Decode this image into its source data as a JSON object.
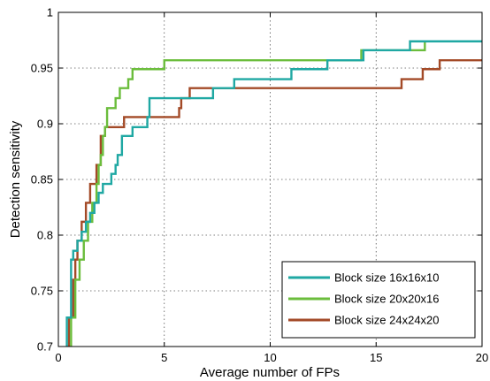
{
  "chart_data": {
    "type": "line",
    "title": "",
    "xlabel": "Average number of FPs",
    "ylabel": "Detection sensitivity",
    "xlim": [
      0,
      20
    ],
    "ylim": [
      0.7,
      1
    ],
    "xticks": [
      0,
      5,
      10,
      15,
      20
    ],
    "yticks": [
      0.7,
      0.75,
      0.8,
      0.85,
      0.9,
      0.95,
      1
    ],
    "xtick_labels": [
      "0",
      "5",
      "10",
      "15",
      "20"
    ],
    "ytick_labels": [
      "0.7",
      "0.75",
      "0.8",
      "0.85",
      "0.9",
      "0.95",
      "1"
    ],
    "grid": true,
    "legend_position": "bottom-right",
    "series": [
      {
        "name": "Block size 16x16x10",
        "color": "#1fa8a3",
        "steps": [
          [
            0.4,
            0.7
          ],
          [
            0.4,
            0.726
          ],
          [
            0.6,
            0.726
          ],
          [
            0.6,
            0.778
          ],
          [
            0.7,
            0.778
          ],
          [
            0.7,
            0.786
          ],
          [
            0.9,
            0.786
          ],
          [
            0.9,
            0.795
          ],
          [
            1.1,
            0.795
          ],
          [
            1.1,
            0.803
          ],
          [
            1.3,
            0.803
          ],
          [
            1.3,
            0.812
          ],
          [
            1.5,
            0.812
          ],
          [
            1.5,
            0.82
          ],
          [
            1.7,
            0.82
          ],
          [
            1.7,
            0.829
          ],
          [
            1.9,
            0.829
          ],
          [
            1.9,
            0.838
          ],
          [
            2.1,
            0.838
          ],
          [
            2.1,
            0.846
          ],
          [
            2.5,
            0.846
          ],
          [
            2.5,
            0.855
          ],
          [
            2.7,
            0.855
          ],
          [
            2.7,
            0.863
          ],
          [
            2.8,
            0.863
          ],
          [
            2.8,
            0.872
          ],
          [
            3.0,
            0.872
          ],
          [
            3.0,
            0.889
          ],
          [
            3.5,
            0.889
          ],
          [
            3.5,
            0.897
          ],
          [
            4.2,
            0.897
          ],
          [
            4.2,
            0.906
          ],
          [
            4.3,
            0.906
          ],
          [
            4.3,
            0.923
          ],
          [
            7.3,
            0.923
          ],
          [
            7.3,
            0.932
          ],
          [
            8.3,
            0.932
          ],
          [
            8.3,
            0.94
          ],
          [
            11.0,
            0.94
          ],
          [
            11.0,
            0.949
          ],
          [
            12.7,
            0.949
          ],
          [
            12.7,
            0.957
          ],
          [
            14.4,
            0.957
          ],
          [
            14.4,
            0.966
          ],
          [
            16.6,
            0.966
          ],
          [
            16.6,
            0.974
          ],
          [
            20,
            0.974
          ]
        ]
      },
      {
        "name": "Block size 20x20x16",
        "color": "#6bbd3c",
        "steps": [
          [
            0.6,
            0.7
          ],
          [
            0.6,
            0.726
          ],
          [
            0.8,
            0.726
          ],
          [
            0.8,
            0.76
          ],
          [
            1.0,
            0.76
          ],
          [
            1.0,
            0.778
          ],
          [
            1.2,
            0.778
          ],
          [
            1.2,
            0.795
          ],
          [
            1.4,
            0.795
          ],
          [
            1.4,
            0.812
          ],
          [
            1.6,
            0.812
          ],
          [
            1.6,
            0.829
          ],
          [
            1.8,
            0.829
          ],
          [
            1.8,
            0.846
          ],
          [
            1.9,
            0.846
          ],
          [
            1.9,
            0.863
          ],
          [
            2.0,
            0.863
          ],
          [
            2.0,
            0.872
          ],
          [
            2.1,
            0.872
          ],
          [
            2.1,
            0.889
          ],
          [
            2.2,
            0.889
          ],
          [
            2.2,
            0.897
          ],
          [
            2.3,
            0.897
          ],
          [
            2.3,
            0.914
          ],
          [
            2.7,
            0.914
          ],
          [
            2.7,
            0.923
          ],
          [
            2.9,
            0.923
          ],
          [
            2.9,
            0.932
          ],
          [
            3.3,
            0.932
          ],
          [
            3.3,
            0.94
          ],
          [
            3.5,
            0.94
          ],
          [
            3.5,
            0.949
          ],
          [
            5.0,
            0.949
          ],
          [
            5.0,
            0.957
          ],
          [
            14.3,
            0.957
          ],
          [
            14.3,
            0.966
          ],
          [
            17.3,
            0.966
          ],
          [
            17.3,
            0.974
          ],
          [
            20,
            0.974
          ]
        ]
      },
      {
        "name": "Block size 24x24x20",
        "color": "#a34a27",
        "steps": [
          [
            0.5,
            0.7
          ],
          [
            0.5,
            0.726
          ],
          [
            0.7,
            0.726
          ],
          [
            0.7,
            0.76
          ],
          [
            0.8,
            0.76
          ],
          [
            0.8,
            0.778
          ],
          [
            0.9,
            0.778
          ],
          [
            0.9,
            0.795
          ],
          [
            1.1,
            0.795
          ],
          [
            1.1,
            0.812
          ],
          [
            1.3,
            0.812
          ],
          [
            1.3,
            0.829
          ],
          [
            1.5,
            0.829
          ],
          [
            1.5,
            0.846
          ],
          [
            1.8,
            0.846
          ],
          [
            1.8,
            0.863
          ],
          [
            2.0,
            0.863
          ],
          [
            2.0,
            0.889
          ],
          [
            2.2,
            0.889
          ],
          [
            2.2,
            0.897
          ],
          [
            3.1,
            0.897
          ],
          [
            3.1,
            0.906
          ],
          [
            5.7,
            0.906
          ],
          [
            5.7,
            0.914
          ],
          [
            5.8,
            0.914
          ],
          [
            5.8,
            0.923
          ],
          [
            6.2,
            0.923
          ],
          [
            6.2,
            0.932
          ],
          [
            16.2,
            0.932
          ],
          [
            16.2,
            0.94
          ],
          [
            17.2,
            0.94
          ],
          [
            17.2,
            0.949
          ],
          [
            18.0,
            0.949
          ],
          [
            18.0,
            0.957
          ],
          [
            20,
            0.957
          ]
        ]
      }
    ]
  }
}
